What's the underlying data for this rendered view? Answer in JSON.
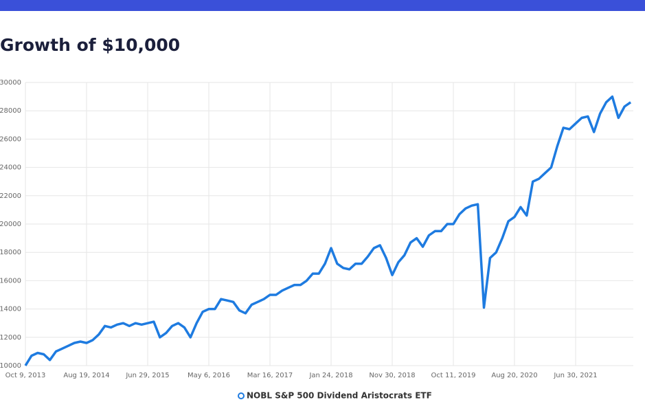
{
  "chart_data": {
    "type": "line",
    "title": "Growth of $10,000",
    "categories": [
      "Oct 9, 2013",
      null,
      null,
      null,
      null,
      null,
      null,
      null,
      null,
      null,
      "Aug 19, 2014",
      null,
      null,
      null,
      null,
      null,
      null,
      null,
      null,
      null,
      "Jun 29, 2015",
      null,
      null,
      null,
      null,
      null,
      null,
      null,
      null,
      null,
      "May 6, 2016",
      null,
      null,
      null,
      null,
      null,
      null,
      null,
      null,
      null,
      "Mar 16, 2017",
      null,
      null,
      null,
      null,
      null,
      null,
      null,
      null,
      null,
      "Jan 24, 2018",
      null,
      null,
      null,
      null,
      null,
      null,
      null,
      null,
      null,
      "Nov 30, 2018",
      null,
      null,
      null,
      null,
      null,
      null,
      null,
      null,
      null,
      "Oct 11, 2019",
      null,
      null,
      null,
      null,
      null,
      null,
      null,
      null,
      null,
      "Aug 20, 2020",
      null,
      null,
      null,
      null,
      null,
      null,
      null,
      null,
      null,
      "Jun 30, 2021",
      null,
      null,
      null,
      null,
      null,
      null,
      null,
      null,
      null
    ],
    "series": [
      {
        "name": "NOBL S&P 500 Dividend Aristocrats ETF",
        "color": "#1e7be0",
        "values": [
          10000,
          10700,
          10900,
          10800,
          10400,
          11000,
          11200,
          11400,
          11600,
          11700,
          11600,
          11800,
          12200,
          12800,
          12700,
          12900,
          13000,
          12800,
          13000,
          12900,
          13000,
          13100,
          12000,
          12300,
          12800,
          13000,
          12700,
          12000,
          13000,
          13800,
          14000,
          14000,
          14700,
          14600,
          14500,
          13900,
          13700,
          14300,
          14500,
          14700,
          15000,
          15000,
          15300,
          15500,
          15700,
          15700,
          16000,
          16500,
          16500,
          17200,
          18300,
          17200,
          16900,
          16800,
          17200,
          17200,
          17700,
          18300,
          18500,
          17600,
          16400,
          17300,
          17800,
          18700,
          19000,
          18400,
          19200,
          19500,
          19500,
          20000,
          20000,
          20700,
          21100,
          21300,
          21400,
          14100,
          17600,
          18000,
          19000,
          20200,
          20500,
          21200,
          20600,
          23000,
          23200,
          23600,
          24000,
          25500,
          26800,
          26700,
          27100,
          27500,
          27600,
          26500,
          27800,
          28600,
          29000,
          27500,
          28300,
          28600
        ]
      }
    ],
    "ylim": [
      10000,
      30000
    ],
    "yticks": [
      10000,
      12000,
      14000,
      16000,
      18000,
      20000,
      22000,
      24000,
      26000,
      28000,
      30000
    ],
    "grid": true
  }
}
